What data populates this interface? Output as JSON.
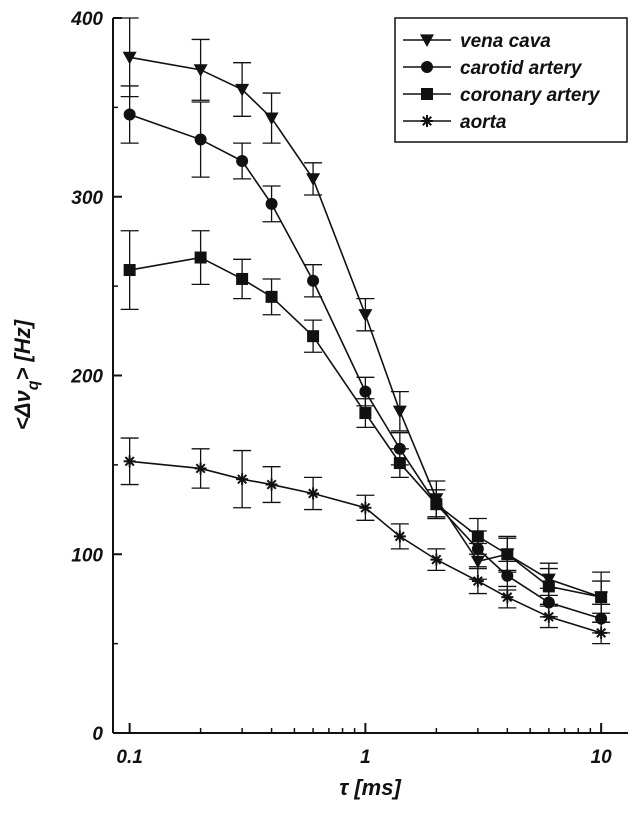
{
  "chart_data": {
    "type": "line",
    "xscale": "log",
    "xlabel": "τ [ms]",
    "ylabel_main": "<Δν",
    "ylabel_sub": "q",
    "ylabel_tail": "> [Hz]",
    "xlim": [
      0.085,
      13
    ],
    "ylim": [
      0,
      400
    ],
    "xticks": [
      0.1,
      1,
      10
    ],
    "xtick_labels": [
      "0.1",
      "1",
      "10"
    ],
    "yticks": [
      0,
      100,
      200,
      300,
      400
    ],
    "ytick_labels": [
      "0",
      "100",
      "200",
      "300",
      "400"
    ],
    "grid": false,
    "legend_position": "top-right",
    "series": [
      {
        "name": "vena cava",
        "marker": "triangle-down",
        "points": [
          {
            "x": 0.1,
            "y": 378,
            "err": 22
          },
          {
            "x": 0.2,
            "y": 371,
            "err": 17
          },
          {
            "x": 0.3,
            "y": 360,
            "err": 15
          },
          {
            "x": 0.4,
            "y": 344,
            "err": 14
          },
          {
            "x": 0.6,
            "y": 310,
            "err": 9
          },
          {
            "x": 1.0,
            "y": 234,
            "err": 9
          },
          {
            "x": 1.4,
            "y": 180,
            "err": 11
          },
          {
            "x": 2.0,
            "y": 131,
            "err": 10
          },
          {
            "x": 3.0,
            "y": 96,
            "err": 10
          },
          {
            "x": 4.0,
            "y": 100,
            "err": 9
          },
          {
            "x": 6.0,
            "y": 86,
            "err": 9
          },
          {
            "x": 10.0,
            "y": 76,
            "err": 14
          }
        ]
      },
      {
        "name": "carotid artery",
        "marker": "circle",
        "points": [
          {
            "x": 0.1,
            "y": 346,
            "err": 16
          },
          {
            "x": 0.2,
            "y": 332,
            "err": 21
          },
          {
            "x": 0.3,
            "y": 320,
            "err": 10
          },
          {
            "x": 0.4,
            "y": 296,
            "err": 10
          },
          {
            "x": 0.6,
            "y": 253,
            "err": 9
          },
          {
            "x": 1.0,
            "y": 191,
            "err": 8
          },
          {
            "x": 1.4,
            "y": 159,
            "err": 9
          },
          {
            "x": 2.0,
            "y": 128,
            "err": 8
          },
          {
            "x": 3.0,
            "y": 103,
            "err": 10
          },
          {
            "x": 4.0,
            "y": 88,
            "err": 8
          },
          {
            "x": 6.0,
            "y": 73,
            "err": 8
          },
          {
            "x": 10.0,
            "y": 64,
            "err": 8
          }
        ]
      },
      {
        "name": "coronary artery",
        "marker": "square",
        "points": [
          {
            "x": 0.1,
            "y": 259,
            "err": 22
          },
          {
            "x": 0.2,
            "y": 266,
            "err": 15
          },
          {
            "x": 0.3,
            "y": 254,
            "err": 11
          },
          {
            "x": 0.4,
            "y": 244,
            "err": 10
          },
          {
            "x": 0.6,
            "y": 222,
            "err": 9
          },
          {
            "x": 1.0,
            "y": 179,
            "err": 8
          },
          {
            "x": 1.4,
            "y": 151,
            "err": 8
          },
          {
            "x": 2.0,
            "y": 128,
            "err": 8
          },
          {
            "x": 3.0,
            "y": 110,
            "err": 10
          },
          {
            "x": 4.0,
            "y": 100,
            "err": 10
          },
          {
            "x": 6.0,
            "y": 82,
            "err": 10
          },
          {
            "x": 10.0,
            "y": 76,
            "err": 9
          }
        ]
      },
      {
        "name": "aorta",
        "marker": "star",
        "points": [
          {
            "x": 0.1,
            "y": 152,
            "err": 13
          },
          {
            "x": 0.2,
            "y": 148,
            "err": 11
          },
          {
            "x": 0.3,
            "y": 142,
            "err": 16
          },
          {
            "x": 0.4,
            "y": 139,
            "err": 10
          },
          {
            "x": 0.6,
            "y": 134,
            "err": 9
          },
          {
            "x": 1.0,
            "y": 126,
            "err": 7
          },
          {
            "x": 1.4,
            "y": 110,
            "err": 7
          },
          {
            "x": 2.0,
            "y": 97,
            "err": 6
          },
          {
            "x": 3.0,
            "y": 85,
            "err": 7
          },
          {
            "x": 4.0,
            "y": 76,
            "err": 6
          },
          {
            "x": 6.0,
            "y": 65,
            "err": 6
          },
          {
            "x": 10.0,
            "y": 56,
            "err": 6
          }
        ]
      }
    ]
  }
}
